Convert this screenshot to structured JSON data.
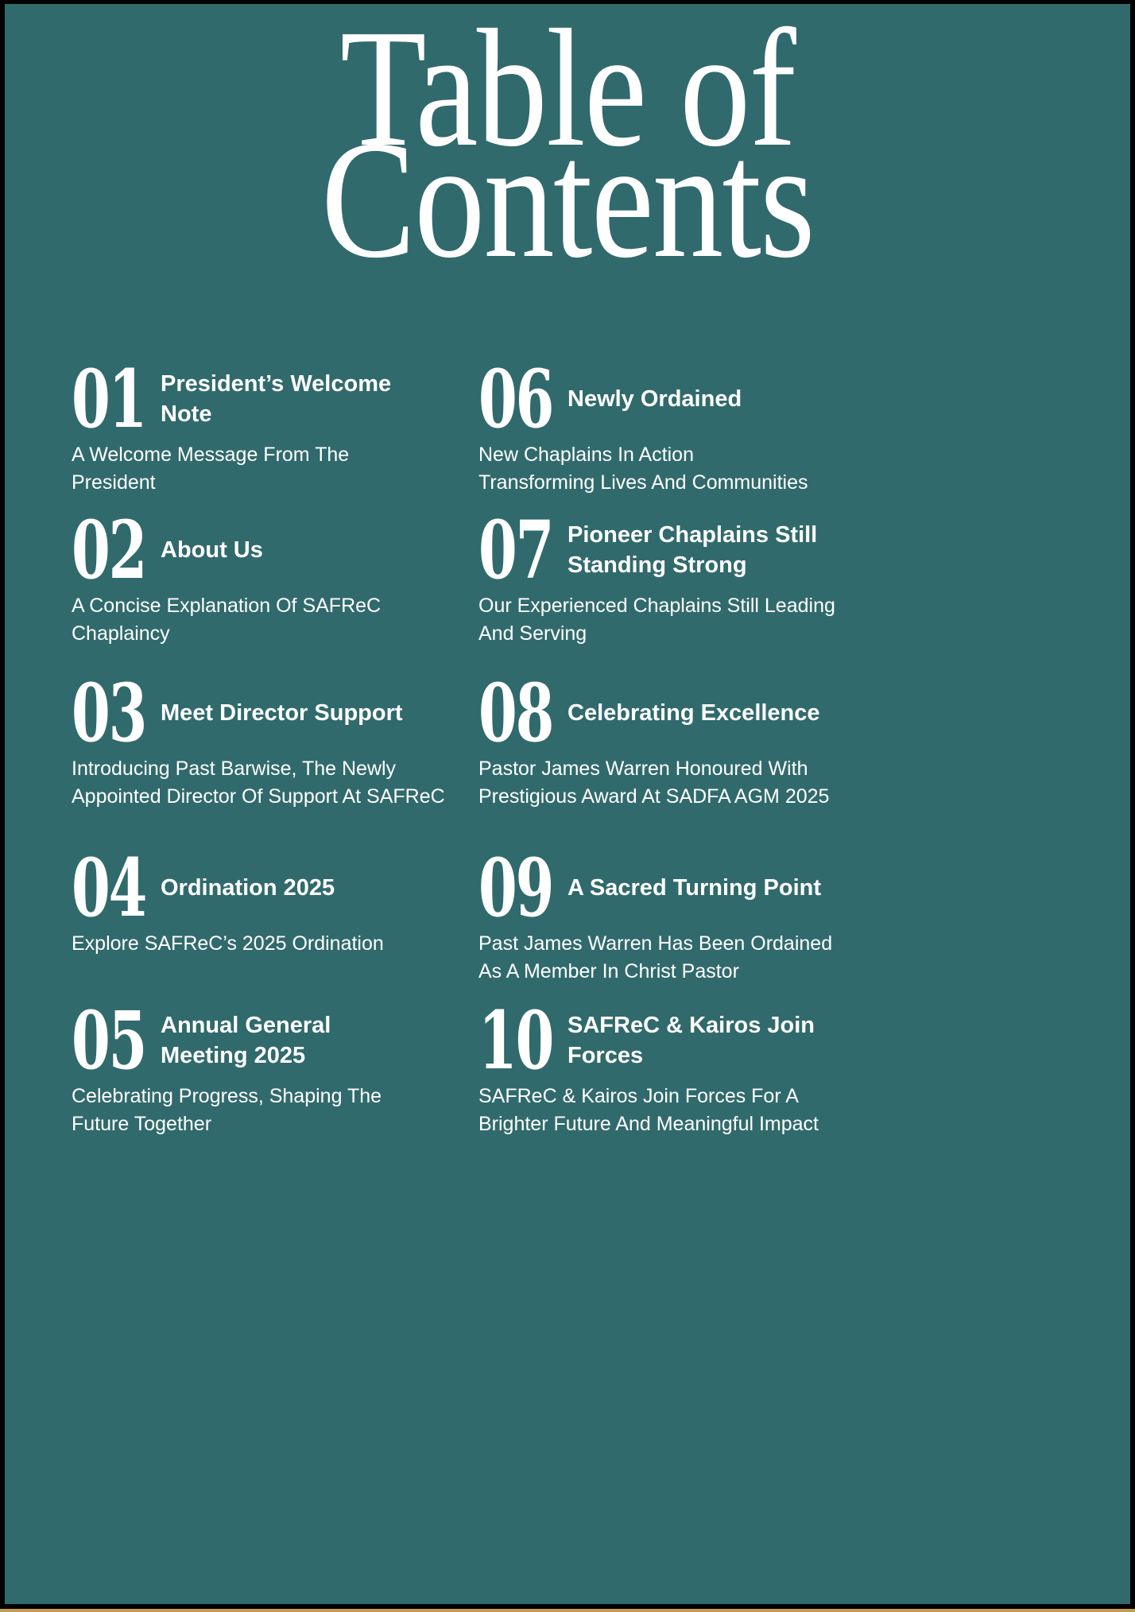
{
  "page": {
    "title": {
      "line1": "Table of",
      "line2": "Contents"
    },
    "colors": {
      "background": "#316a6c",
      "frame": "#000000",
      "edge_strip": "#c49b55",
      "text": "#ffffff"
    }
  },
  "toc": {
    "left": [
      {
        "number": "01",
        "title": "President’s Welcome\nNote",
        "description": "A Welcome Message From The\nPresident"
      },
      {
        "number": "02",
        "title": "About Us",
        "description": "A Concise Explanation Of SAFReC\nChaplaincy"
      },
      {
        "number": "03",
        "title": "Meet Director Support",
        "description": "Introducing Past Barwise, The Newly\nAppointed Director Of Support At SAFReC"
      },
      {
        "number": "04",
        "title": "Ordination 2025",
        "description": "Explore SAFReC’s 2025 Ordination"
      },
      {
        "number": "05",
        "title": "Annual General\nMeeting 2025",
        "description": "Celebrating Progress, Shaping The\nFuture Together"
      }
    ],
    "right": [
      {
        "number": "06",
        "title": "Newly Ordained",
        "description": "New Chaplains In Action\nTransforming Lives And Communities"
      },
      {
        "number": "07",
        "title": "Pioneer Chaplains Still\nStanding Strong",
        "description": "Our Experienced Chaplains Still Leading\nAnd Serving"
      },
      {
        "number": "08",
        "title": "Celebrating Excellence",
        "description": "Pastor James Warren Honoured With\nPrestigious Award At SADFA AGM 2025"
      },
      {
        "number": "09",
        "title": "A Sacred Turning Point",
        "description": "Past James Warren Has Been Ordained\nAs A Member In Christ Pastor"
      },
      {
        "number": "10",
        "title": "SAFReC & Kairos Join\nForces",
        "description": "SAFReC & Kairos Join Forces For A\nBrighter Future And Meaningful Impact"
      }
    ]
  }
}
